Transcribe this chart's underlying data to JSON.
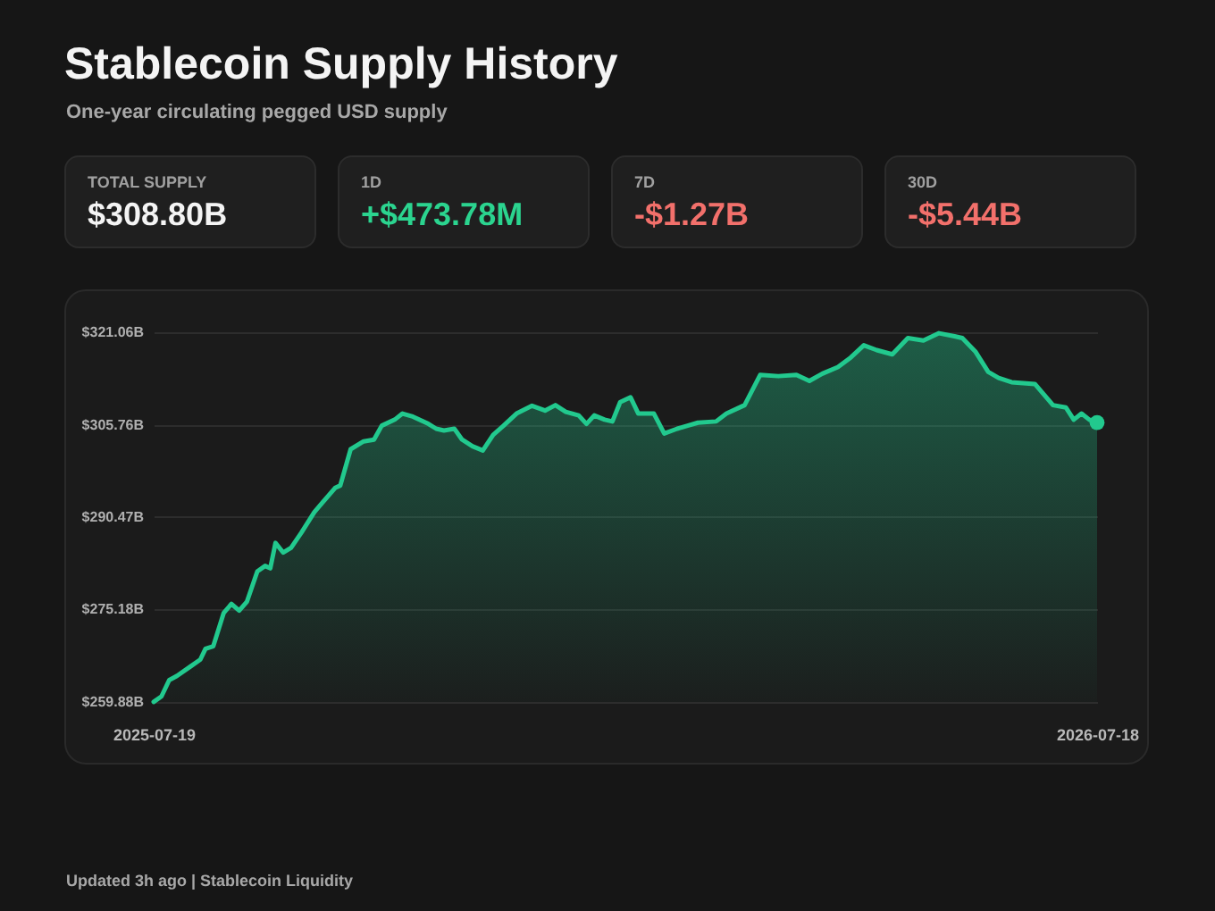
{
  "chart_data": {
    "type": "area",
    "title": "Stablecoin Supply History",
    "subtitle": "One-year circulating pegged USD supply",
    "annotations": [
      "TOTAL SUPPLY",
      "$308.80B",
      "1D",
      "+$473.78M",
      "7D",
      "-$1.27B",
      "30D",
      "-$5.44B",
      "Updated 3h ago | Stablecoin Liquidity"
    ],
    "x": [
      "2025-07-19",
      "2025-07-22",
      "2025-07-25",
      "2025-07-28",
      "2025-08-02",
      "2025-08-06",
      "2025-08-08",
      "2025-08-11",
      "2025-08-15",
      "2025-08-18",
      "2025-08-21",
      "2025-08-24",
      "2025-08-28",
      "2025-08-31",
      "2025-09-02",
      "2025-09-04",
      "2025-09-07",
      "2025-09-10",
      "2025-09-14",
      "2025-09-19",
      "2025-09-22",
      "2025-09-27",
      "2025-09-29",
      "2025-10-03",
      "2025-10-08",
      "2025-10-12",
      "2025-10-15",
      "2025-10-20",
      "2025-10-23",
      "2025-10-27",
      "2025-11-02",
      "2025-11-05",
      "2025-11-08",
      "2025-11-12",
      "2025-11-15",
      "2025-11-19",
      "2025-11-23",
      "2025-11-27",
      "2025-12-01",
      "2025-12-06",
      "2025-12-12",
      "2025-12-17",
      "2025-12-21",
      "2025-12-25",
      "2025-12-30",
      "2026-01-02",
      "2026-01-05",
      "2026-01-09",
      "2026-01-12",
      "2026-01-15",
      "2026-01-19",
      "2026-01-22",
      "2026-01-28",
      "2026-02-01",
      "2026-02-06",
      "2026-02-10",
      "2026-02-14",
      "2026-02-21",
      "2026-02-25",
      "2026-03-04",
      "2026-03-10",
      "2026-03-17",
      "2026-03-24",
      "2026-03-29",
      "2026-04-03",
      "2026-04-09",
      "2026-04-14",
      "2026-04-19",
      "2026-04-24",
      "2026-04-30",
      "2026-05-06",
      "2026-05-12",
      "2026-05-18",
      "2026-05-24",
      "2026-05-27",
      "2026-06-01",
      "2026-06-06",
      "2026-06-10",
      "2026-06-15",
      "2026-06-24",
      "2026-07-01",
      "2026-07-06",
      "2026-07-09",
      "2026-07-12",
      "2026-07-15",
      "2026-07-18"
    ],
    "series": [
      {
        "color": "#22c98e",
        "values": [
          259.9,
          260.8,
          263.5,
          264.2,
          265.7,
          266.9,
          268.7,
          269.1,
          274.6,
          276.1,
          275.0,
          276.5,
          281.5,
          282.4,
          282.0,
          286.2,
          284.6,
          285.4,
          287.9,
          291.3,
          292.8,
          295.3,
          295.7,
          301.7,
          303.0,
          303.3,
          305.6,
          306.6,
          307.6,
          307.1,
          305.9,
          305.1,
          304.8,
          305.1,
          303.3,
          302.2,
          301.5,
          304.1,
          305.6,
          307.6,
          308.9,
          308.1,
          309.0,
          307.9,
          307.3,
          305.9,
          307.3,
          306.6,
          306.3,
          309.5,
          310.3,
          307.6,
          307.6,
          304.3,
          305.1,
          305.6,
          306.1,
          306.3,
          307.6,
          309.0,
          314.0,
          313.8,
          314.0,
          313.0,
          314.2,
          315.3,
          316.9,
          318.9,
          318.1,
          317.4,
          320.1,
          319.7,
          320.9,
          320.4,
          320.1,
          317.9,
          314.5,
          313.5,
          312.8,
          312.5,
          309.0,
          308.6,
          306.6,
          307.6,
          306.6,
          306.1
        ]
      }
    ],
    "xlim": [
      "2025-07-19",
      "2026-07-18"
    ],
    "xticks": [
      "2025-07-19",
      "2026-07-18"
    ],
    "ylim": [
      259.88,
      321.06
    ],
    "yticks": [
      {
        "value": 259.88,
        "label": "$259.88B"
      },
      {
        "value": 275.18,
        "label": "$275.18B"
      },
      {
        "value": 290.47,
        "label": "$290.47B"
      },
      {
        "value": 305.76,
        "label": "$305.76B"
      },
      {
        "value": 321.06,
        "label": "$321.06B"
      }
    ],
    "grid": "y"
  }
}
